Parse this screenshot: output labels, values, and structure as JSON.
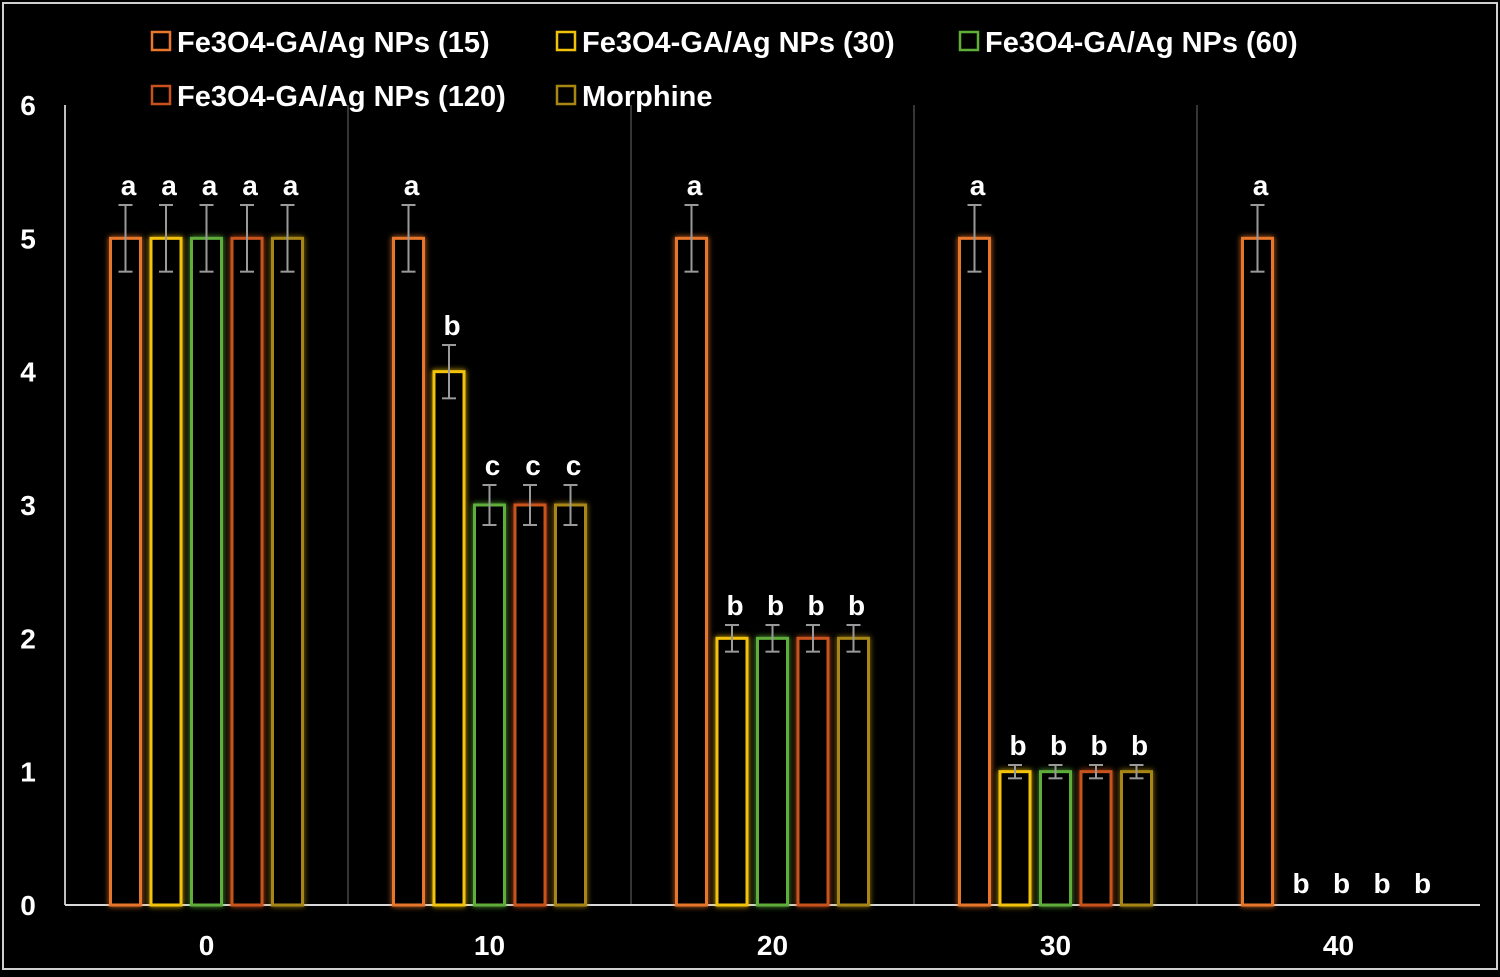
{
  "chart_data": {
    "type": "bar",
    "title": "",
    "xlabel": "",
    "ylabel": "",
    "ylim": [
      0,
      6
    ],
    "yticks": [
      0,
      1,
      2,
      3,
      4,
      5,
      6
    ],
    "grid": "vertical category separators",
    "legend_position": "top",
    "categories": [
      "0",
      "10",
      "20",
      "30",
      "40"
    ],
    "series": [
      {
        "name": "Fe3O4-GA/Ag NPs (15)",
        "color": "#e8762c",
        "values": [
          5,
          5,
          5,
          5,
          5
        ],
        "errors": [
          0.25,
          0.25,
          0.25,
          0.25,
          0.25
        ],
        "labels": [
          "a",
          "a",
          "a",
          "a",
          "a"
        ]
      },
      {
        "name": "Fe3O4-GA/Ag NPs (30)",
        "color": "#f2c20a",
        "values": [
          5,
          4,
          2,
          1,
          0
        ],
        "errors": [
          0.25,
          0.2,
          0.1,
          0.05,
          0
        ],
        "labels": [
          "a",
          "b",
          "b",
          "b",
          "b"
        ]
      },
      {
        "name": "Fe3O4-GA/Ag NPs (60)",
        "color": "#5fae3a",
        "values": [
          5,
          3,
          2,
          1,
          0
        ],
        "errors": [
          0.25,
          0.15,
          0.1,
          0.05,
          0
        ],
        "labels": [
          "a",
          "c",
          "b",
          "b",
          "b"
        ]
      },
      {
        "name": "Fe3O4-GA/Ag NPs (120)",
        "color": "#c9521c",
        "values": [
          5,
          3,
          2,
          1,
          0
        ],
        "errors": [
          0.25,
          0.15,
          0.1,
          0.05,
          0
        ],
        "labels": [
          "a",
          "c",
          "b",
          "b",
          "b"
        ]
      },
      {
        "name": "Morphine",
        "color": "#a88612",
        "values": [
          5,
          3,
          2,
          1,
          0
        ],
        "errors": [
          0.25,
          0.15,
          0.1,
          0.05,
          0
        ],
        "labels": [
          "a",
          "c",
          "b",
          "b",
          "b"
        ]
      }
    ]
  }
}
